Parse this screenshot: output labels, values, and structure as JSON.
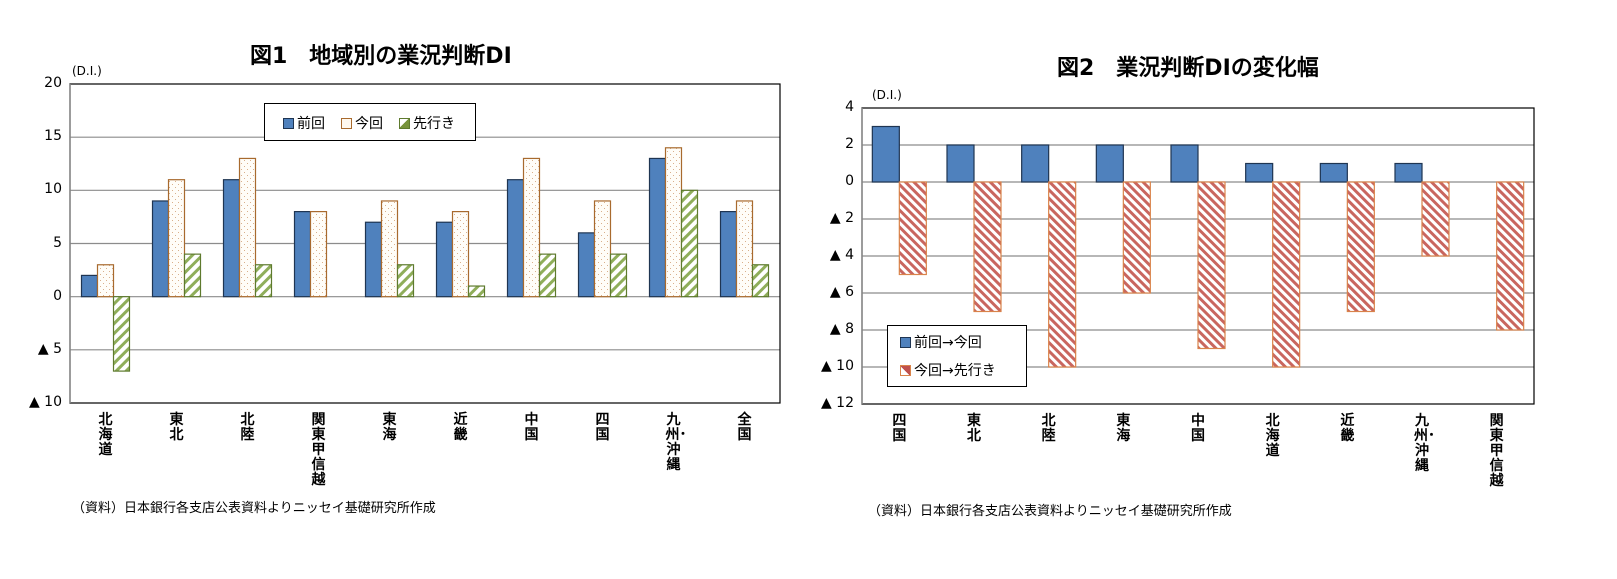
{
  "chart_data": [
    {
      "type": "bar",
      "title": "図1　地域別の業況判断DI",
      "ylabel": "(D.I.)",
      "xlabel": "",
      "ylim": [
        -10,
        20
      ],
      "yticks": [
        20,
        15,
        10,
        5,
        0,
        -5,
        -10
      ],
      "ytick_labels": [
        "20",
        "15",
        "10",
        "5",
        "0",
        "▲ 5",
        "▲ 10"
      ],
      "grid": true,
      "legend_position": "top-center inside",
      "categories": [
        "北海道",
        "東北",
        "北陸",
        "関東甲信越",
        "東海",
        "近畿",
        "中国",
        "四国",
        "九州・沖縄",
        "全国"
      ],
      "series": [
        {
          "name": "前回",
          "color": "#4f81bd",
          "pattern": "solid",
          "values": [
            2,
            9,
            11,
            8,
            7,
            7,
            11,
            6,
            13,
            8
          ]
        },
        {
          "name": "今回",
          "color": "#c0803a",
          "pattern": "dots",
          "values": [
            3,
            11,
            13,
            8,
            9,
            8,
            13,
            9,
            14,
            9
          ]
        },
        {
          "name": "先行き",
          "color": "#77933c",
          "pattern": "diagonal",
          "values": [
            -7,
            4,
            3,
            0,
            3,
            1,
            4,
            4,
            10,
            3
          ]
        }
      ],
      "source": "（資料）日本銀行各支店公表資料よりニッセイ基礎研究所作成"
    },
    {
      "type": "bar",
      "title": "図2　業況判断DIの変化幅",
      "ylabel": "(D.I.)",
      "xlabel": "",
      "ylim": [
        -12,
        4
      ],
      "yticks": [
        4,
        2,
        0,
        -2,
        -4,
        -6,
        -8,
        -10,
        -12
      ],
      "ytick_labels": [
        "4",
        "2",
        "0",
        "▲ 2",
        "▲ 4",
        "▲ 6",
        "▲ 8",
        "▲ 10",
        "▲ 12"
      ],
      "grid": true,
      "legend_position": "bottom-left inside",
      "categories": [
        "四国",
        "東北",
        "北陸",
        "東海",
        "中国",
        "北海道",
        "近畿",
        "九州・沖縄",
        "関東甲信越"
      ],
      "series": [
        {
          "name": "前回→今回",
          "color": "#4f81bd",
          "pattern": "solid",
          "values": [
            3,
            2,
            2,
            2,
            2,
            1,
            1,
            1,
            0
          ]
        },
        {
          "name": "今回→先行き",
          "color": "#c0504d",
          "pattern": "diagonal",
          "values": [
            -5,
            -7,
            -10,
            -6,
            -9,
            -10,
            -7,
            -4,
            -8
          ]
        }
      ],
      "source": "（資料）日本銀行各支店公表資料よりニッセイ基礎研究所作成"
    }
  ]
}
